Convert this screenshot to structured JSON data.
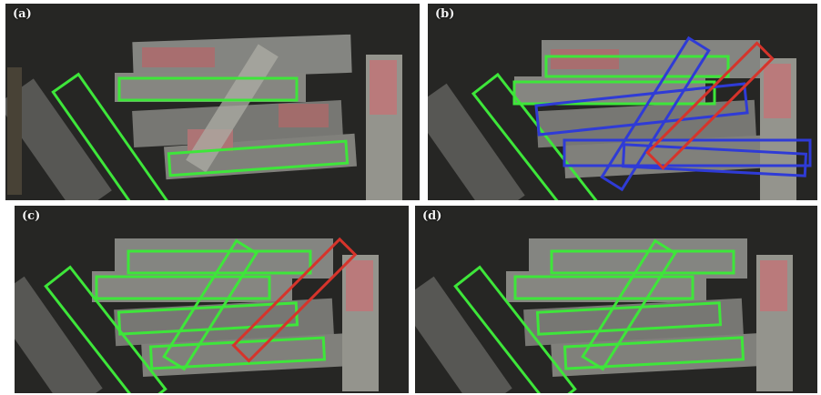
{
  "figure": {
    "panels": [
      {
        "label": "(a)",
        "boxes": [
          {
            "color": "green"
          },
          {
            "color": "green"
          },
          {
            "color": "green"
          }
        ]
      },
      {
        "label": "(b)",
        "boxes": [
          {
            "color": "green"
          },
          {
            "color": "green"
          },
          {
            "color": "green"
          },
          {
            "color": "blue"
          },
          {
            "color": "blue"
          },
          {
            "color": "blue"
          },
          {
            "color": "blue"
          },
          {
            "color": "red"
          }
        ]
      },
      {
        "label": "(c)",
        "boxes": [
          {
            "color": "green"
          },
          {
            "color": "green"
          },
          {
            "color": "green"
          },
          {
            "color": "green"
          },
          {
            "color": "green"
          },
          {
            "color": "green"
          },
          {
            "color": "red"
          }
        ]
      },
      {
        "label": "(d)",
        "boxes": [
          {
            "color": "green"
          },
          {
            "color": "green"
          },
          {
            "color": "green"
          },
          {
            "color": "green"
          },
          {
            "color": "green"
          },
          {
            "color": "green"
          }
        ]
      }
    ],
    "colors": {
      "green": "#3ee63a",
      "blue": "#2f3bd6",
      "red": "#d6342b",
      "background": "#262624"
    }
  }
}
